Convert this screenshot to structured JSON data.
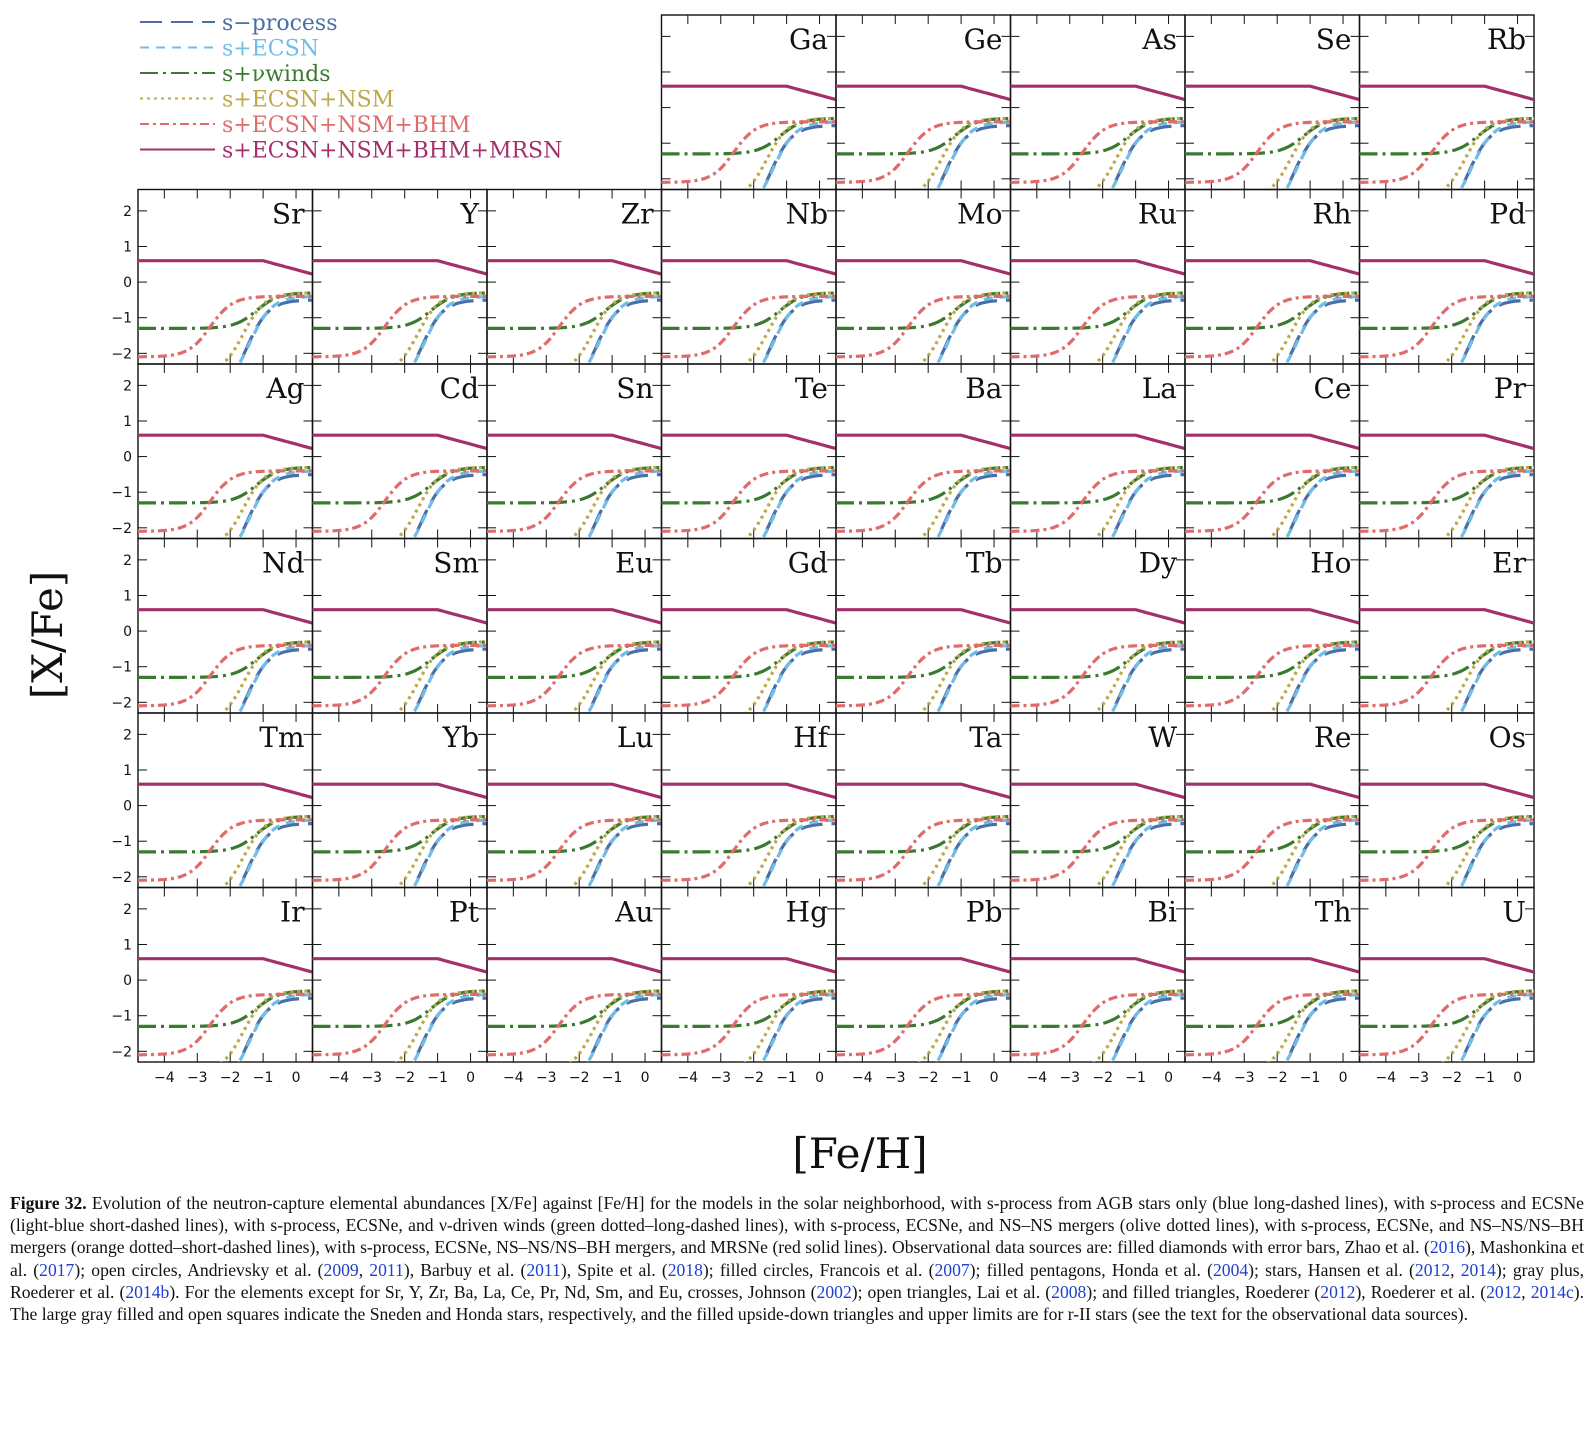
{
  "chart_data": {
    "type": "line",
    "layout": "small-multiples grid",
    "xlabel": "[Fe/H]",
    "ylabel": "[X/Fe]",
    "xlim": [
      -4.8,
      0.5
    ],
    "ylim": [
      -2.3,
      2.6
    ],
    "xticks": [
      "-4",
      "-3",
      "-2",
      "-1",
      "0"
    ],
    "yticks": [
      "2",
      "1",
      "0",
      "-1",
      "-2"
    ],
    "legend_position": "top-left",
    "series": [
      {
        "name": "s−process",
        "color": "#4a6fa5",
        "style": "long-dashed"
      },
      {
        "name": "s+ECSN",
        "color": "#72bde8",
        "style": "short-dashed"
      },
      {
        "name": "s+νwinds",
        "color": "#3a7a30",
        "style": "dot-long-dashed"
      },
      {
        "name": "s+ECSN+NSM",
        "color": "#bda94a",
        "style": "dotted"
      },
      {
        "name": "s+ECSN+NSM+BHM",
        "color": "#e06b6b",
        "style": "dot-short-dashed"
      },
      {
        "name": "s+ECSN+NSM+BHM+MRSN",
        "color": "#a3306b",
        "style": "solid"
      }
    ],
    "panels": [
      {
        "element": "Ga",
        "shows_y_axis": false,
        "shows_x_axis": false
      },
      {
        "element": "Ge",
        "shows_y_axis": false,
        "shows_x_axis": false
      },
      {
        "element": "As",
        "shows_y_axis": false,
        "shows_x_axis": false
      },
      {
        "element": "Se",
        "shows_y_axis": false,
        "shows_x_axis": false
      },
      {
        "element": "Rb",
        "shows_y_axis": false,
        "shows_x_axis": false
      },
      {
        "element": "Sr",
        "shows_y_axis": true,
        "shows_x_axis": false
      },
      {
        "element": "Y",
        "shows_y_axis": false,
        "shows_x_axis": false
      },
      {
        "element": "Zr",
        "shows_y_axis": false,
        "shows_x_axis": false
      },
      {
        "element": "Nb",
        "shows_y_axis": false,
        "shows_x_axis": false
      },
      {
        "element": "Mo",
        "shows_y_axis": false,
        "shows_x_axis": false
      },
      {
        "element": "Ru",
        "shows_y_axis": false,
        "shows_x_axis": false
      },
      {
        "element": "Rh",
        "shows_y_axis": false,
        "shows_x_axis": false
      },
      {
        "element": "Pd",
        "shows_y_axis": false,
        "shows_x_axis": false
      },
      {
        "element": "Ag",
        "shows_y_axis": true,
        "shows_x_axis": false
      },
      {
        "element": "Cd",
        "shows_y_axis": false,
        "shows_x_axis": false
      },
      {
        "element": "Sn",
        "shows_y_axis": false,
        "shows_x_axis": false
      },
      {
        "element": "Te",
        "shows_y_axis": false,
        "shows_x_axis": false
      },
      {
        "element": "Ba",
        "shows_y_axis": false,
        "shows_x_axis": false
      },
      {
        "element": "La",
        "shows_y_axis": false,
        "shows_x_axis": false
      },
      {
        "element": "Ce",
        "shows_y_axis": false,
        "shows_x_axis": false
      },
      {
        "element": "Pr",
        "shows_y_axis": false,
        "shows_x_axis": false
      },
      {
        "element": "Nd",
        "shows_y_axis": true,
        "shows_x_axis": false
      },
      {
        "element": "Sm",
        "shows_y_axis": false,
        "shows_x_axis": false
      },
      {
        "element": "Eu",
        "shows_y_axis": false,
        "shows_x_axis": false
      },
      {
        "element": "Gd",
        "shows_y_axis": false,
        "shows_x_axis": false
      },
      {
        "element": "Tb",
        "shows_y_axis": false,
        "shows_x_axis": false
      },
      {
        "element": "Dy",
        "shows_y_axis": false,
        "shows_x_axis": false
      },
      {
        "element": "Ho",
        "shows_y_axis": false,
        "shows_x_axis": false
      },
      {
        "element": "Er",
        "shows_y_axis": false,
        "shows_x_axis": false
      },
      {
        "element": "Tm",
        "shows_y_axis": true,
        "shows_x_axis": false
      },
      {
        "element": "Yb",
        "shows_y_axis": false,
        "shows_x_axis": false
      },
      {
        "element": "Lu",
        "shows_y_axis": false,
        "shows_x_axis": false
      },
      {
        "element": "Hf",
        "shows_y_axis": false,
        "shows_x_axis": false
      },
      {
        "element": "Ta",
        "shows_y_axis": false,
        "shows_x_axis": false
      },
      {
        "element": "W",
        "shows_y_axis": false,
        "shows_x_axis": false
      },
      {
        "element": "Re",
        "shows_y_axis": false,
        "shows_x_axis": false
      },
      {
        "element": "Os",
        "shows_y_axis": false,
        "shows_x_axis": false
      },
      {
        "element": "Ir",
        "shows_y_axis": true,
        "shows_x_axis": true
      },
      {
        "element": "Pt",
        "shows_y_axis": false,
        "shows_x_axis": true
      },
      {
        "element": "Au",
        "shows_y_axis": false,
        "shows_x_axis": true
      },
      {
        "element": "Hg",
        "shows_y_axis": false,
        "shows_x_axis": true
      },
      {
        "element": "Pb",
        "shows_y_axis": false,
        "shows_x_axis": true
      },
      {
        "element": "Bi",
        "shows_y_axis": false,
        "shows_x_axis": true
      },
      {
        "element": "Th",
        "shows_y_axis": false,
        "shows_x_axis": true
      },
      {
        "element": "U",
        "shows_y_axis": false,
        "shows_x_axis": true
      }
    ]
  },
  "caption": {
    "label": "Figure 32.",
    "text_1": " Evolution of the neutron-capture elemental abundances [X/Fe] against [Fe/H] for the models in the solar neighborhood, with s-process from AGB stars only (blue long-dashed lines), with s-process and ECSNe (light-blue short-dashed lines), with s-process, ECSNe, and ν-driven winds (green dotted–long-dashed lines), with s-process, ECSNe, and NS–NS mergers (olive dotted lines), with s-process, ECSNe, and NS–NS/NS–BH mergers (orange dotted–short-dashed lines), with s-process, ECSNe, NS–NS/NS–BH mergers, and MRSNe (red solid lines). Observational data sources are: filled diamonds with error bars, Zhao et al. (",
    "ref_1": "2016",
    "text_2": "), Mashonkina et al. (",
    "ref_2": "2017",
    "text_3": "); open circles, Andrievsky et al. (",
    "ref_3": "2009",
    "text_4": ", ",
    "ref_4": "2011",
    "text_5": "), Barbuy et al. (",
    "ref_5": "2011",
    "text_6": "), Spite et al. (",
    "ref_6": "2018",
    "text_7": "); filled circles, Francois et al. (",
    "ref_7": "2007",
    "text_8": "); filled pentagons, Honda et al. (",
    "ref_8": "2004",
    "text_9": "); stars, Hansen et al. (",
    "ref_9": "2012",
    "text_10": ", ",
    "ref_10": "2014",
    "text_11": "); gray plus, Roederer et al. (",
    "ref_11": "2014b",
    "text_12": "). For the elements except for Sr, Y, Zr, Ba, La, Ce, Pr, Nd, Sm, and Eu, crosses, Johnson (",
    "ref_12": "2002",
    "text_13": "); open triangles, Lai et al. (",
    "ref_13": "2008",
    "text_14": "); and filled triangles, Roederer (",
    "ref_14": "2012",
    "text_15": "), Roederer et al. (",
    "ref_15": "2012",
    "text_16": ", ",
    "ref_16": "2014c",
    "text_17": "). The large gray filled and open squares indicate the Sneden and Honda stars, respectively, and the filled upside-down triangles and upper limits are for r-II stars (see the text for the observational data sources)."
  }
}
